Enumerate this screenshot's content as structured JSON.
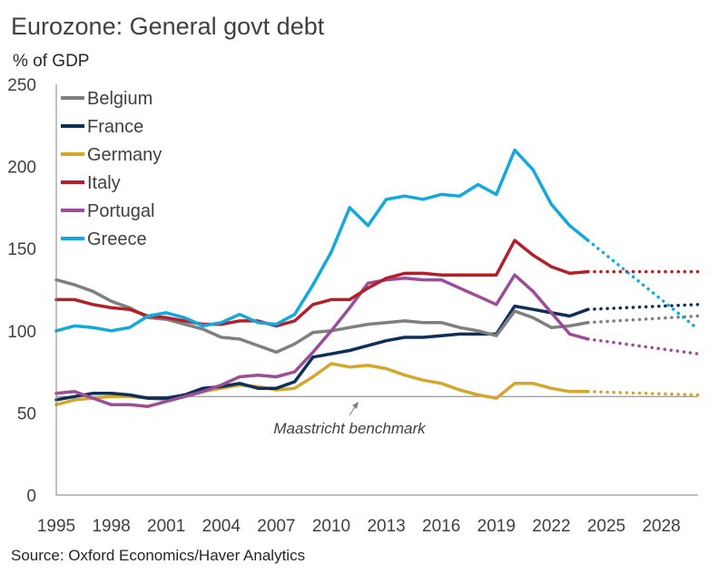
{
  "chart_data": {
    "type": "line",
    "title": "Eurozone: General govt debt",
    "ylabel": "% of GDP",
    "source": "Source: Oxford Economics/Haver Analytics",
    "annotation": "Maastricht benchmark",
    "benchmark": 60,
    "ylim": [
      0,
      250
    ],
    "xlim": [
      1995,
      2030
    ],
    "yticks": [
      "0",
      "50",
      "100",
      "150",
      "200",
      "250"
    ],
    "xticks": [
      "1995",
      "1998",
      "2001",
      "2004",
      "2007",
      "2010",
      "2013",
      "2016",
      "2019",
      "2022",
      "2025",
      "2028"
    ],
    "legend_position": "top-left",
    "series": [
      {
        "name": "Belgium",
        "color": "#7f7f7f",
        "x": [
          1995,
          1996,
          1997,
          1998,
          1999,
          2000,
          2001,
          2002,
          2003,
          2004,
          2005,
          2006,
          2007,
          2008,
          2009,
          2010,
          2011,
          2012,
          2013,
          2014,
          2015,
          2016,
          2017,
          2018,
          2019,
          2020,
          2021,
          2022,
          2023,
          2024
        ],
        "values": [
          131,
          128,
          124,
          118,
          114,
          108,
          107,
          104,
          101,
          96,
          95,
          91,
          87,
          92,
          99,
          100,
          102,
          104,
          105,
          106,
          105,
          105,
          102,
          100,
          97,
          112,
          108,
          102,
          103,
          105
        ],
        "forecast": {
          "x": [
            2024,
            2030
          ],
          "values": [
            105,
            109
          ]
        }
      },
      {
        "name": "France",
        "color": "#0d2f5a",
        "x": [
          1995,
          1996,
          1997,
          1998,
          1999,
          2000,
          2001,
          2002,
          2003,
          2004,
          2005,
          2006,
          2007,
          2008,
          2009,
          2010,
          2011,
          2012,
          2013,
          2014,
          2015,
          2016,
          2017,
          2018,
          2019,
          2020,
          2021,
          2022,
          2023,
          2024
        ],
        "values": [
          58,
          60,
          62,
          62,
          61,
          59,
          59,
          61,
          65,
          66,
          68,
          65,
          65,
          69,
          84,
          86,
          88,
          91,
          94,
          96,
          96,
          97,
          98,
          98,
          98,
          115,
          113,
          111,
          109,
          113
        ],
        "forecast": {
          "x": [
            2024,
            2030
          ],
          "values": [
            113,
            116
          ]
        }
      },
      {
        "name": "Germany",
        "color": "#d4a72c",
        "x": [
          1995,
          1996,
          1997,
          1998,
          1999,
          2000,
          2001,
          2002,
          2003,
          2004,
          2005,
          2006,
          2007,
          2008,
          2009,
          2010,
          2011,
          2012,
          2013,
          2014,
          2015,
          2016,
          2017,
          2018,
          2019,
          2020,
          2021,
          2022,
          2023,
          2024
        ],
        "values": [
          55,
          58,
          59,
          60,
          60,
          59,
          58,
          60,
          63,
          65,
          67,
          66,
          64,
          65,
          72,
          80,
          78,
          79,
          77,
          73,
          70,
          68,
          64,
          61,
          59,
          68,
          68,
          65,
          63,
          63
        ],
        "forecast": {
          "x": [
            2024,
            2030
          ],
          "values": [
            63,
            61
          ]
        }
      },
      {
        "name": "Italy",
        "color": "#b3202a",
        "x": [
          1995,
          1996,
          1997,
          1998,
          1999,
          2000,
          2001,
          2002,
          2003,
          2004,
          2005,
          2006,
          2007,
          2008,
          2009,
          2010,
          2011,
          2012,
          2013,
          2014,
          2015,
          2016,
          2017,
          2018,
          2019,
          2020,
          2021,
          2022,
          2023,
          2024
        ],
        "values": [
          119,
          119,
          116,
          114,
          113,
          109,
          108,
          106,
          104,
          104,
          106,
          106,
          103,
          106,
          116,
          119,
          119,
          126,
          132,
          135,
          135,
          134,
          134,
          134,
          134,
          155,
          146,
          139,
          135,
          136
        ],
        "forecast": {
          "x": [
            2024,
            2030
          ],
          "values": [
            136,
            136
          ]
        }
      },
      {
        "name": "Portugal",
        "color": "#9b4e96",
        "x": [
          1995,
          1996,
          1997,
          1998,
          1999,
          2000,
          2001,
          2002,
          2003,
          2004,
          2005,
          2006,
          2007,
          2008,
          2009,
          2010,
          2011,
          2012,
          2013,
          2014,
          2015,
          2016,
          2017,
          2018,
          2019,
          2020,
          2021,
          2022,
          2023,
          2024
        ],
        "values": [
          62,
          63,
          59,
          55,
          55,
          54,
          57,
          60,
          63,
          67,
          72,
          73,
          72,
          75,
          87,
          100,
          114,
          129,
          131,
          132,
          131,
          131,
          126,
          121,
          116,
          134,
          124,
          111,
          98,
          95
        ],
        "forecast": {
          "x": [
            2024,
            2030
          ],
          "values": [
            95,
            86
          ]
        }
      },
      {
        "name": "Greece",
        "color": "#12a9dc",
        "x": [
          1995,
          1996,
          1997,
          1998,
          1999,
          2000,
          2001,
          2002,
          2003,
          2004,
          2005,
          2006,
          2007,
          2008,
          2009,
          2010,
          2011,
          2012,
          2013,
          2014,
          2015,
          2016,
          2017,
          2018,
          2019,
          2020,
          2021,
          2022,
          2023,
          2024
        ],
        "values": [
          100,
          103,
          102,
          100,
          102,
          109,
          111,
          108,
          103,
          105,
          110,
          105,
          104,
          110,
          128,
          148,
          175,
          164,
          180,
          182,
          180,
          183,
          182,
          189,
          183,
          210,
          198,
          177,
          164,
          155
        ],
        "forecast": {
          "x": [
            2024,
            2030
          ],
          "values": [
            155,
            101
          ]
        }
      }
    ]
  }
}
